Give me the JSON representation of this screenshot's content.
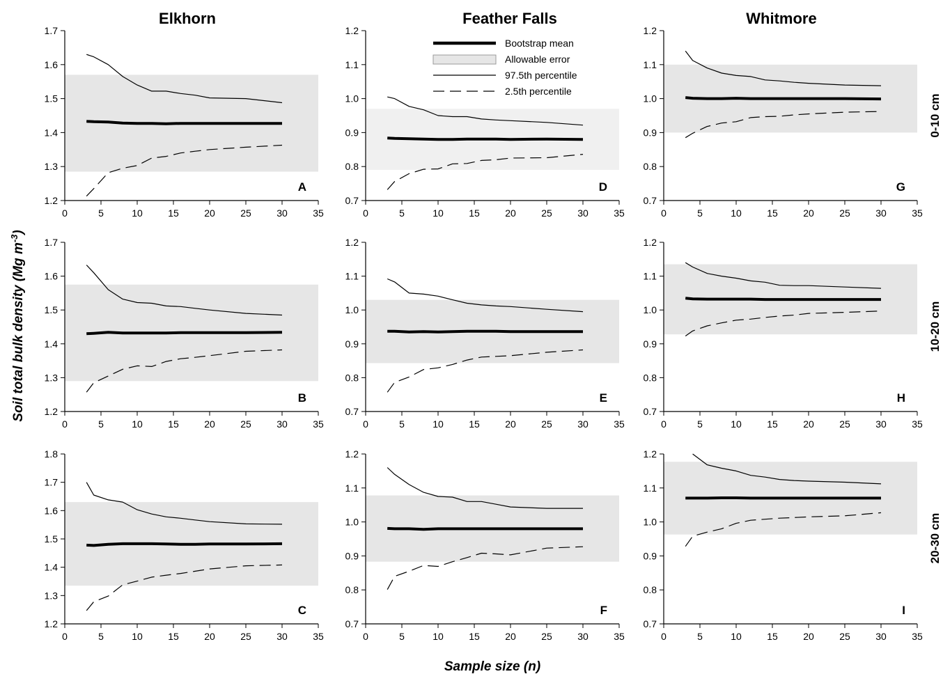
{
  "figure": {
    "column_titles": [
      "Elkhorn",
      "Feather Falls",
      "Whitmore"
    ],
    "row_labels": [
      "0-10 cm",
      "10-20 cm",
      "20-30 cm"
    ],
    "y_axis_title": "Soil total bulk density (Mg m",
    "y_axis_title_superscript": "-3",
    "y_axis_title_close": ")",
    "x_axis_title": "Sample size (",
    "x_axis_title_italic": "n",
    "x_axis_title_close": ")"
  },
  "legend": {
    "entries": [
      "Bootstrap mean",
      "Allowable error",
      "97.5th percentile",
      "2.5th percentile"
    ]
  },
  "chart_data": [
    {
      "panel": "A",
      "type": "line",
      "site": "Elkhorn",
      "depth": "0-10 cm",
      "xlim": [
        0,
        35
      ],
      "ylim": [
        1.2,
        1.7
      ],
      "x_ticks": [
        "0",
        "5",
        "10",
        "15",
        "20",
        "25",
        "30",
        "35"
      ],
      "y_ticks": [
        "1.2",
        "1.3",
        "1.4",
        "1.5",
        "1.6",
        "1.7"
      ],
      "allowable_error": [
        1.285,
        1.57
      ],
      "series": [
        {
          "name": "Bootstrap mean",
          "x": [
            3,
            4,
            6,
            8,
            10,
            12,
            14,
            16,
            18,
            20,
            25,
            30
          ],
          "y": [
            1.433,
            1.432,
            1.431,
            1.428,
            1.427,
            1.427,
            1.426,
            1.427,
            1.427,
            1.427,
            1.427,
            1.427
          ]
        },
        {
          "name": "97.5th percentile",
          "x": [
            3,
            4,
            6,
            8,
            10,
            12,
            14,
            16,
            18,
            20,
            25,
            30
          ],
          "y": [
            1.63,
            1.623,
            1.6,
            1.565,
            1.54,
            1.522,
            1.522,
            1.515,
            1.51,
            1.502,
            1.5,
            1.488
          ]
        },
        {
          "name": "2.5th percentile",
          "x": [
            3,
            4,
            6,
            8,
            10,
            12,
            14,
            16,
            18,
            20,
            25,
            30
          ],
          "y": [
            1.213,
            1.235,
            1.282,
            1.295,
            1.303,
            1.325,
            1.33,
            1.34,
            1.345,
            1.35,
            1.357,
            1.363
          ]
        }
      ]
    },
    {
      "panel": "B",
      "type": "line",
      "site": "Elkhorn",
      "depth": "10-20 cm",
      "xlim": [
        0,
        35
      ],
      "ylim": [
        1.2,
        1.7
      ],
      "x_ticks": [
        "0",
        "5",
        "10",
        "15",
        "20",
        "25",
        "30",
        "35"
      ],
      "y_ticks": [
        "1.2",
        "1.3",
        "1.4",
        "1.5",
        "1.6",
        "1.7"
      ],
      "allowable_error": [
        1.29,
        1.575
      ],
      "series": [
        {
          "name": "Bootstrap mean",
          "x": [
            3,
            4,
            6,
            8,
            10,
            12,
            14,
            16,
            18,
            20,
            25,
            30
          ],
          "y": [
            1.43,
            1.431,
            1.434,
            1.432,
            1.432,
            1.432,
            1.432,
            1.433,
            1.433,
            1.433,
            1.433,
            1.434
          ]
        },
        {
          "name": "97.5th percentile",
          "x": [
            3,
            4,
            6,
            8,
            10,
            12,
            14,
            16,
            18,
            20,
            25,
            30
          ],
          "y": [
            1.633,
            1.61,
            1.56,
            1.532,
            1.522,
            1.52,
            1.512,
            1.51,
            1.505,
            1.5,
            1.49,
            1.485
          ]
        },
        {
          "name": "2.5th percentile",
          "x": [
            3,
            4,
            6,
            8,
            10,
            12,
            14,
            16,
            18,
            20,
            25,
            30
          ],
          "y": [
            1.257,
            1.285,
            1.305,
            1.325,
            1.335,
            1.333,
            1.348,
            1.356,
            1.36,
            1.365,
            1.378,
            1.382
          ]
        }
      ]
    },
    {
      "panel": "C",
      "type": "line",
      "site": "Elkhorn",
      "depth": "20-30 cm",
      "xlim": [
        0,
        35
      ],
      "ylim": [
        1.2,
        1.8
      ],
      "x_ticks": [
        "0",
        "5",
        "10",
        "15",
        "20",
        "25",
        "30",
        "35"
      ],
      "y_ticks": [
        "1.2",
        "1.3",
        "1.4",
        "1.5",
        "1.6",
        "1.7",
        "1.8"
      ],
      "allowable_error": [
        1.335,
        1.63
      ],
      "series": [
        {
          "name": "Bootstrap mean",
          "x": [
            3,
            4,
            6,
            8,
            10,
            12,
            14,
            16,
            18,
            20,
            25,
            30
          ],
          "y": [
            1.478,
            1.477,
            1.481,
            1.483,
            1.483,
            1.483,
            1.482,
            1.481,
            1.481,
            1.482,
            1.482,
            1.483
          ]
        },
        {
          "name": "97.5th percentile",
          "x": [
            3,
            4,
            6,
            8,
            10,
            12,
            14,
            16,
            18,
            20,
            25,
            30
          ],
          "y": [
            1.7,
            1.655,
            1.638,
            1.63,
            1.603,
            1.588,
            1.578,
            1.573,
            1.567,
            1.561,
            1.553,
            1.552
          ]
        },
        {
          "name": "2.5th percentile",
          "x": [
            3,
            4,
            6,
            8,
            10,
            12,
            14,
            16,
            18,
            20,
            25,
            30
          ],
          "y": [
            1.247,
            1.278,
            1.298,
            1.338,
            1.351,
            1.365,
            1.372,
            1.378,
            1.386,
            1.394,
            1.405,
            1.408
          ]
        }
      ]
    },
    {
      "panel": "D",
      "type": "line",
      "site": "Feather Falls",
      "depth": "0-10 cm",
      "xlim": [
        0,
        35
      ],
      "ylim": [
        0.7,
        1.2
      ],
      "x_ticks": [
        "0",
        "5",
        "10",
        "15",
        "20",
        "25",
        "30",
        "35"
      ],
      "y_ticks": [
        "0.7",
        "0.8",
        "0.9",
        "1.0",
        "1.1",
        "1.2"
      ],
      "allowable_error": [
        0.79,
        0.97
      ],
      "series": [
        {
          "name": "Bootstrap mean",
          "x": [
            3,
            4,
            6,
            8,
            10,
            12,
            14,
            16,
            18,
            20,
            25,
            30
          ],
          "y": [
            0.884,
            0.883,
            0.882,
            0.881,
            0.88,
            0.88,
            0.881,
            0.881,
            0.881,
            0.88,
            0.881,
            0.88
          ]
        },
        {
          "name": "97.5th percentile",
          "x": [
            3,
            4,
            6,
            8,
            10,
            12,
            14,
            16,
            18,
            20,
            25,
            30
          ],
          "y": [
            1.005,
            1.0,
            0.977,
            0.967,
            0.95,
            0.947,
            0.947,
            0.94,
            0.937,
            0.935,
            0.93,
            0.922
          ]
        },
        {
          "name": "2.5th percentile",
          "x": [
            3,
            4,
            6,
            8,
            10,
            12,
            14,
            16,
            18,
            20,
            25,
            30
          ],
          "y": [
            0.732,
            0.756,
            0.779,
            0.792,
            0.793,
            0.808,
            0.809,
            0.818,
            0.82,
            0.825,
            0.826,
            0.836
          ]
        }
      ]
    },
    {
      "panel": "E",
      "type": "line",
      "site": "Feather Falls",
      "depth": "10-20 cm",
      "xlim": [
        0,
        35
      ],
      "ylim": [
        0.7,
        1.2
      ],
      "x_ticks": [
        "0",
        "5",
        "10",
        "15",
        "20",
        "25",
        "30",
        "35"
      ],
      "y_ticks": [
        "0.7",
        "0.8",
        "0.9",
        "1.0",
        "1.1",
        "1.2"
      ],
      "allowable_error": [
        0.843,
        1.03
      ],
      "series": [
        {
          "name": "Bootstrap mean",
          "x": [
            3,
            4,
            6,
            8,
            10,
            12,
            14,
            16,
            18,
            20,
            25,
            30
          ],
          "y": [
            0.937,
            0.937,
            0.935,
            0.936,
            0.935,
            0.936,
            0.937,
            0.937,
            0.937,
            0.936,
            0.936,
            0.936
          ]
        },
        {
          "name": "97.5th percentile",
          "x": [
            3,
            4,
            6,
            8,
            10,
            12,
            14,
            16,
            18,
            20,
            25,
            30
          ],
          "y": [
            1.092,
            1.083,
            1.05,
            1.047,
            1.041,
            1.03,
            1.02,
            1.015,
            1.012,
            1.01,
            1.002,
            0.995
          ]
        },
        {
          "name": "2.5th percentile",
          "x": [
            3,
            4,
            6,
            8,
            10,
            12,
            14,
            16,
            18,
            20,
            25,
            30
          ],
          "y": [
            0.757,
            0.786,
            0.802,
            0.824,
            0.829,
            0.839,
            0.852,
            0.861,
            0.863,
            0.865,
            0.875,
            0.882
          ]
        }
      ]
    },
    {
      "panel": "F",
      "type": "line",
      "site": "Feather Falls",
      "depth": "20-30 cm",
      "xlim": [
        0,
        35
      ],
      "ylim": [
        0.7,
        1.2
      ],
      "x_ticks": [
        "0",
        "5",
        "10",
        "15",
        "20",
        "25",
        "30",
        "35"
      ],
      "y_ticks": [
        "0.7",
        "0.8",
        "0.9",
        "1.0",
        "1.1",
        "1.2"
      ],
      "allowable_error": [
        0.883,
        1.078
      ],
      "series": [
        {
          "name": "Bootstrap mean",
          "x": [
            3,
            4,
            6,
            8,
            10,
            12,
            14,
            16,
            18,
            20,
            25,
            30
          ],
          "y": [
            0.981,
            0.98,
            0.98,
            0.978,
            0.98,
            0.98,
            0.98,
            0.98,
            0.98,
            0.98,
            0.98,
            0.98
          ]
        },
        {
          "name": "97.5th percentile",
          "x": [
            3,
            4,
            6,
            8,
            10,
            12,
            14,
            16,
            18,
            20,
            25,
            30
          ],
          "y": [
            1.16,
            1.14,
            1.11,
            1.087,
            1.075,
            1.073,
            1.06,
            1.06,
            1.052,
            1.044,
            1.04,
            1.04
          ]
        },
        {
          "name": "2.5th percentile",
          "x": [
            3,
            4,
            6,
            8,
            10,
            12,
            14,
            16,
            18,
            20,
            25,
            30
          ],
          "y": [
            0.801,
            0.84,
            0.855,
            0.872,
            0.869,
            0.883,
            0.895,
            0.908,
            0.906,
            0.903,
            0.923,
            0.927
          ]
        }
      ]
    },
    {
      "panel": "G",
      "type": "line",
      "site": "Whitmore",
      "depth": "0-10 cm",
      "xlim": [
        0,
        35
      ],
      "ylim": [
        0.7,
        1.2
      ],
      "x_ticks": [
        "0",
        "5",
        "10",
        "15",
        "20",
        "25",
        "30",
        "35"
      ],
      "y_ticks": [
        "0.7",
        "0.8",
        "0.9",
        "1.0",
        "1.1",
        "1.2"
      ],
      "allowable_error": [
        0.9,
        1.1
      ],
      "series": [
        {
          "name": "Bootstrap mean",
          "x": [
            3,
            4,
            6,
            8,
            10,
            12,
            14,
            16,
            18,
            20,
            25,
            30
          ],
          "y": [
            1.003,
            1.001,
            1.0,
            1.0,
            1.001,
            1.0,
            1.0,
            1.0,
            1.0,
            1.0,
            1.0,
            0.999
          ]
        },
        {
          "name": "97.5th percentile",
          "x": [
            3,
            4,
            6,
            8,
            10,
            12,
            14,
            16,
            18,
            20,
            25,
            30
          ],
          "y": [
            1.14,
            1.112,
            1.09,
            1.075,
            1.068,
            1.065,
            1.055,
            1.052,
            1.048,
            1.045,
            1.04,
            1.038
          ]
        },
        {
          "name": "2.5th percentile",
          "x": [
            3,
            4,
            6,
            8,
            10,
            12,
            14,
            16,
            18,
            20,
            25,
            30
          ],
          "y": [
            0.885,
            0.898,
            0.918,
            0.928,
            0.932,
            0.944,
            0.947,
            0.948,
            0.952,
            0.955,
            0.96,
            0.962
          ]
        }
      ]
    },
    {
      "panel": "H",
      "type": "line",
      "site": "Whitmore",
      "depth": "10-20 cm",
      "xlim": [
        0,
        35
      ],
      "ylim": [
        0.7,
        1.2
      ],
      "x_ticks": [
        "0",
        "5",
        "10",
        "15",
        "20",
        "25",
        "30",
        "35"
      ],
      "y_ticks": [
        "0.7",
        "0.8",
        "0.9",
        "1.0",
        "1.1",
        "1.2"
      ],
      "allowable_error": [
        0.928,
        1.135
      ],
      "series": [
        {
          "name": "Bootstrap mean",
          "x": [
            3,
            4,
            6,
            8,
            10,
            12,
            14,
            16,
            18,
            20,
            25,
            30
          ],
          "y": [
            1.035,
            1.033,
            1.032,
            1.032,
            1.032,
            1.032,
            1.031,
            1.031,
            1.031,
            1.031,
            1.031,
            1.031
          ]
        },
        {
          "name": "97.5th percentile",
          "x": [
            3,
            4,
            6,
            8,
            10,
            12,
            14,
            16,
            18,
            20,
            25,
            30
          ],
          "y": [
            1.14,
            1.127,
            1.108,
            1.1,
            1.094,
            1.086,
            1.082,
            1.073,
            1.072,
            1.072,
            1.068,
            1.064
          ]
        },
        {
          "name": "2.5th percentile",
          "x": [
            3,
            4,
            6,
            8,
            10,
            12,
            14,
            16,
            18,
            20,
            25,
            30
          ],
          "y": [
            0.923,
            0.938,
            0.953,
            0.962,
            0.97,
            0.973,
            0.978,
            0.982,
            0.985,
            0.99,
            0.993,
            0.997
          ]
        }
      ]
    },
    {
      "panel": "I",
      "type": "line",
      "site": "Whitmore",
      "depth": "20-30 cm",
      "xlim": [
        0,
        35
      ],
      "ylim": [
        0.7,
        1.2
      ],
      "x_ticks": [
        "0",
        "5",
        "10",
        "15",
        "20",
        "25",
        "30",
        "35"
      ],
      "y_ticks": [
        "0.7",
        "0.8",
        "0.9",
        "1.0",
        "1.1",
        "1.2"
      ],
      "allowable_error": [
        0.963,
        1.177
      ],
      "series": [
        {
          "name": "Bootstrap mean",
          "x": [
            3,
            4,
            6,
            8,
            10,
            12,
            14,
            16,
            18,
            20,
            25,
            30
          ],
          "y": [
            1.07,
            1.07,
            1.07,
            1.071,
            1.071,
            1.07,
            1.07,
            1.07,
            1.07,
            1.07,
            1.07,
            1.07
          ]
        },
        {
          "name": "97.5th percentile",
          "x": [
            4,
            6,
            8,
            10,
            12,
            14,
            16,
            18,
            20,
            25,
            30
          ],
          "y": [
            1.2,
            1.168,
            1.158,
            1.15,
            1.137,
            1.132,
            1.125,
            1.122,
            1.12,
            1.117,
            1.112
          ]
        },
        {
          "name": "2.5th percentile",
          "x": [
            3,
            4,
            6,
            8,
            10,
            12,
            14,
            16,
            18,
            20,
            25,
            30
          ],
          "y": [
            0.928,
            0.958,
            0.97,
            0.98,
            0.996,
            1.005,
            1.008,
            1.011,
            1.013,
            1.015,
            1.018,
            1.027
          ]
        }
      ]
    }
  ]
}
